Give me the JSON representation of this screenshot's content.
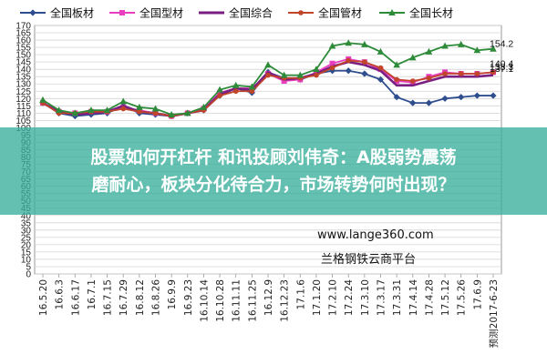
{
  "chart_data": {
    "type": "line",
    "title": "",
    "xlabel": "",
    "ylabel": "",
    "ylim": [
      0,
      170
    ],
    "ytick_step": 5,
    "grid": true,
    "legend_position": "top",
    "categories": [
      "16.5.20",
      "16.6.3",
      "16.6.17",
      "16.7.1",
      "16.7.15",
      "16.7.29",
      "16.8.12",
      "16.8.26",
      "16.9.9",
      "16.9.23",
      "16.10.14",
      "16.10.28",
      "16.11.11",
      "16.11.25",
      "16.12.9",
      "16.12.23",
      "17.1.6",
      "17.1.20",
      "17.2.10",
      "17.2.24",
      "17.3.10",
      "17.3.17",
      "17.3.31",
      "17.4.14",
      "17.4.28",
      "17.5.12",
      "17.5.26",
      "17.6.9",
      "预测2017-6-23"
    ],
    "series": [
      {
        "name": "全国板材",
        "color": "#2e4e8e",
        "marker": "diamond",
        "values": [
          117,
          110,
          108,
          109,
          110,
          115,
          110,
          109,
          108,
          110,
          112,
          122,
          127,
          124,
          138,
          134,
          133,
          137,
          139,
          139,
          137,
          133,
          121,
          117,
          117,
          120,
          121,
          122,
          122
        ]
      },
      {
        "name": "全国型材",
        "color": "#e83ec0",
        "marker": "square",
        "values": [
          117,
          111,
          110,
          111,
          111,
          114,
          112,
          110,
          108,
          110,
          113,
          124,
          127,
          127,
          137,
          132,
          133,
          138,
          144,
          147,
          145,
          140,
          132,
          131,
          135,
          138,
          137,
          137,
          138
        ]
      },
      {
        "name": "全国综合",
        "color": "#7a1f82",
        "marker": "line",
        "values": [
          117,
          111,
          109,
          110,
          111,
          115,
          111,
          110,
          108,
          110,
          112,
          123,
          127,
          126,
          138,
          133,
          134,
          137,
          142,
          145,
          143,
          139,
          129,
          129,
          132,
          135,
          135,
          135,
          136
        ]
      },
      {
        "name": "全国管材",
        "color": "#c0452a",
        "marker": "circle",
        "values": [
          117,
          110,
          110,
          111,
          111,
          113,
          111,
          110,
          108,
          110,
          112,
          122,
          125,
          125,
          136,
          134,
          134,
          136,
          141,
          146,
          145,
          141,
          133,
          132,
          134,
          137,
          137,
          137,
          138
        ]
      },
      {
        "name": "全国长材",
        "color": "#2e8b3a",
        "marker": "triangle",
        "values": [
          119,
          112,
          110,
          112,
          112,
          118,
          114,
          113,
          109,
          110,
          114,
          126,
          129,
          128,
          143,
          136,
          136,
          140,
          156,
          158,
          157,
          152,
          143,
          148,
          152,
          156,
          157,
          153,
          154
        ]
      }
    ],
    "end_labels": [
      "154.2",
      "140.4",
      "138.3",
      "137.1"
    ]
  },
  "watermark": {
    "url": "www.lange360.com",
    "name": "兰格钢铁云商平台"
  },
  "banner": {
    "line1": "股票如何开杠杆 和讯投顾刘伟奇：A股弱势震荡",
    "line2": "磨耐心，板块分化待合力，市场转势何时出现？"
  }
}
